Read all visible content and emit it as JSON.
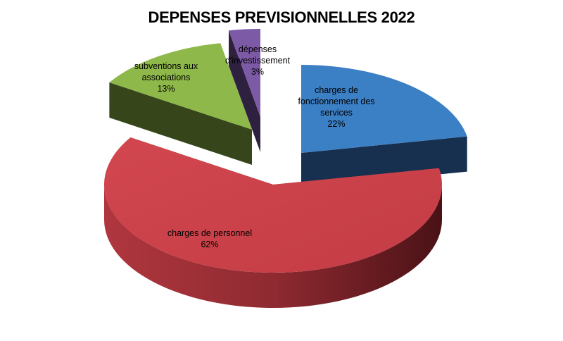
{
  "chart_data": {
    "type": "pie",
    "title": "DEPENSES PREVISIONNELLES 2022",
    "three_d": true,
    "exploded": true,
    "legend": "none",
    "slices": [
      {
        "label": [
          "charges de",
          "fonctionnement des",
          "services"
        ],
        "percent_label": "22%",
        "value": 22,
        "color": "#3b7fc4"
      },
      {
        "label": [
          "charges de personnel"
        ],
        "percent_label": "62%",
        "value": 62,
        "color": "#c9404a"
      },
      {
        "label": [
          "subventions aux",
          "associations"
        ],
        "percent_label": "13%",
        "value": 13,
        "color": "#8fb84a"
      },
      {
        "label": [
          "dépenses",
          "d'investissement"
        ],
        "percent_label": "3%",
        "value": 3,
        "color": "#7d5aa6"
      }
    ]
  }
}
